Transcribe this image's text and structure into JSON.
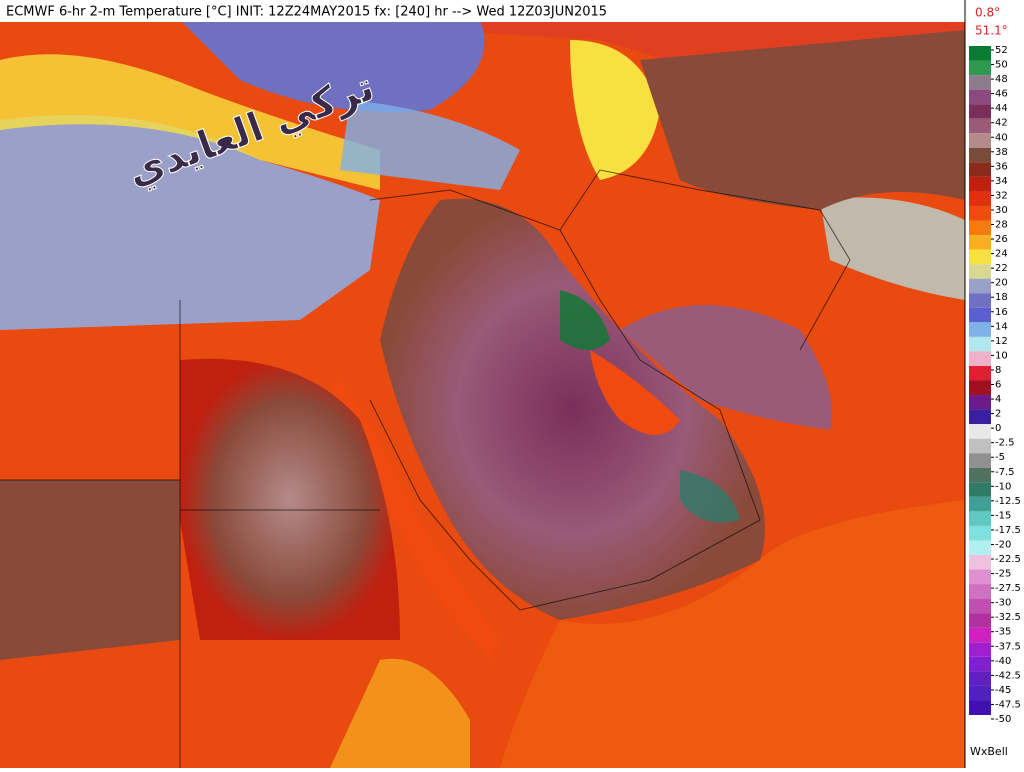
{
  "header": {
    "title": "ECMWF 6-hr 2-m Temperature [°C] INIT: 12Z24MAY2015 fx: [240] hr --> Wed 12Z03JUN2015",
    "min_label": "0.8°",
    "max_label": "51.1°"
  },
  "watermark": "تركي العايدي",
  "credit": "WxBell",
  "colorbar": {
    "ticks": [
      52,
      50,
      48,
      46,
      44,
      42,
      40,
      38,
      36,
      34,
      32,
      30,
      28,
      26,
      24,
      22,
      20,
      18,
      16,
      14,
      12,
      10,
      8,
      6,
      4,
      2,
      0,
      -2.5,
      -5,
      -7.5,
      -10,
      -12.5,
      -15,
      -17.5,
      -20,
      -22.5,
      -25,
      -27.5,
      -30,
      -32.5,
      -35,
      -37.5,
      -40,
      -42.5,
      -45,
      -47.5,
      -50
    ],
    "colors": [
      "#0b7a33",
      "#2f9a4f",
      "#8c7c8c",
      "#8a4a80",
      "#7a2f5a",
      "#9a5a78",
      "#b48a8a",
      "#7a4a3a",
      "#8a2a1a",
      "#c02010",
      "#e03010",
      "#f04a10",
      "#f57a10",
      "#f8b020",
      "#f8e040",
      "#d8d890",
      "#9aa0c8",
      "#7070c0",
      "#5a60d0",
      "#80b0e8",
      "#b0e8f0",
      "#f0b0c8",
      "#e02030",
      "#a01020",
      "#6a1a8a",
      "#3a20a0",
      "#e8e8e8",
      "#c0c0c0",
      "#909090",
      "#507060",
      "#307a6a",
      "#40a098",
      "#60c8c0",
      "#80e0e0",
      "#b0f0f0",
      "#f0c0e0",
      "#e090d0",
      "#d070c0",
      "#c050b0",
      "#b030a0",
      "#d020c0",
      "#a020d0",
      "#8020d0",
      "#6020c0",
      "#5020c0",
      "#4010b0"
    ]
  }
}
